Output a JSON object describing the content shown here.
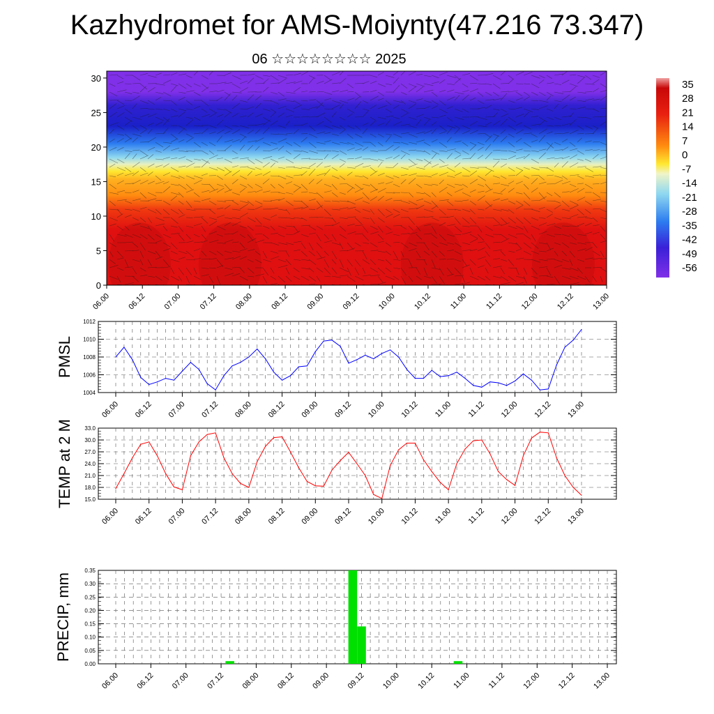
{
  "header": {
    "title": "Kazhydromet for AMS-Moiynty(47.216 73.347)",
    "subtitle": "06 ☆☆☆☆☆☆☆☆ 2025"
  },
  "chart_data": [
    {
      "type": "heatmap",
      "title": "",
      "xlabel": "",
      "ylabel": "",
      "x_ticks": [
        "06.00",
        "06.12",
        "07.00",
        "07.12",
        "08.00",
        "08.12",
        "09.00",
        "09.12",
        "10.00",
        "10.12",
        "11.00",
        "11.12",
        "12.00",
        "12.12",
        "13.00"
      ],
      "y_ticks": [
        0,
        5,
        10,
        15,
        20,
        25,
        30
      ],
      "ylim": [
        0,
        31
      ],
      "colorbar_labels": [
        "35",
        "28",
        "21",
        "14",
        "7",
        "0",
        "-7",
        "-14",
        "-21",
        "-28",
        "-35",
        "-42",
        "-49",
        "-56"
      ],
      "colors": {
        "hot": "#e01010",
        "warm": "#ff8c10",
        "yellow": "#ffe830",
        "cool": "#8fd8f0",
        "cold": "#2c7cf0",
        "deep": "#1a20c8",
        "violet": "#8030e8"
      },
      "legend": "right",
      "overlay": "wind-barbs"
    },
    {
      "type": "line",
      "ylabel": "PMSL",
      "x_ticks": [
        "06.00",
        "06.12",
        "07.00",
        "07.12",
        "08.00",
        "08.12",
        "09.00",
        "09.12",
        "10.00",
        "10.12",
        "11.00",
        "11.12",
        "12.00",
        "12.12",
        "13.00"
      ],
      "y_ticks": [
        "1004",
        "1006",
        "1008",
        "1010",
        "1012"
      ],
      "ylim": [
        1004,
        1012
      ],
      "line_color": "#0000ff",
      "values": [
        1008,
        1009.1,
        1007.7,
        1005.7,
        1004.9,
        1005.2,
        1005.6,
        1005.4,
        1006.4,
        1007.4,
        1006.6,
        1005,
        1004.3,
        1005.9,
        1007,
        1007.4,
        1008,
        1008.9,
        1007.8,
        1006.3,
        1005.4,
        1005.9,
        1006.9,
        1007,
        1008.6,
        1009.8,
        1009.9,
        1009.2,
        1007.3,
        1007.7,
        1008.2,
        1007.8,
        1008.4,
        1008.8,
        1008,
        1006.6,
        1005.6,
        1005.6,
        1006.5,
        1005.8,
        1005.9,
        1006.3,
        1005.6,
        1004.8,
        1004.6,
        1005.2,
        1005.1,
        1004.8,
        1005.3,
        1006.1,
        1005.4,
        1004.3,
        1004.4,
        1007.1,
        1009.1,
        1009.9,
        1011.1
      ]
    },
    {
      "type": "line",
      "ylabel": "TEMP at 2 M",
      "x_ticks": [
        "06.00",
        "06.12",
        "07.00",
        "07.12",
        "08.00",
        "08.12",
        "09.00",
        "09.12",
        "10.00",
        "10.12",
        "11.00",
        "11.12",
        "12.00",
        "12.12",
        "13.00"
      ],
      "y_ticks": [
        "15.0",
        "18.0",
        "21.0",
        "24.0",
        "27.0",
        "30.0",
        "33.0"
      ],
      "ylim": [
        15,
        33
      ],
      "line_color": "#ff0000",
      "values": [
        17.7,
        21.5,
        25.5,
        28.9,
        29.5,
        26,
        21.5,
        18.1,
        17.4,
        26,
        29.5,
        31.4,
        31.8,
        25.5,
        21.5,
        19,
        18,
        24.5,
        28.4,
        30.6,
        30.8,
        27,
        23,
        19.5,
        18.4,
        18.3,
        22.4,
        24.8,
        26.9,
        24,
        21,
        16.2,
        15.2,
        23.5,
        27.5,
        29.2,
        29.2,
        25,
        22,
        19.3,
        17.4,
        24,
        27.7,
        29.8,
        30,
        26.5,
        22,
        20,
        18.5,
        26,
        30.5,
        32,
        31.8,
        25.5,
        21,
        18,
        16
      ]
    },
    {
      "type": "bar",
      "ylabel": "PRECIP, mm",
      "x_ticks": [
        "06.00",
        "06.12",
        "07.00",
        "07.12",
        "08.00",
        "08.12",
        "09.00",
        "09.12",
        "10.00",
        "10.12",
        "11.00",
        "11.12",
        "12.00",
        "12.12",
        "13.00"
      ],
      "y_ticks": [
        "0.00",
        "0.05",
        "0.10",
        "0.15",
        "0.20",
        "0.25",
        "0.30",
        "0.35"
      ],
      "ylim": [
        0,
        0.35
      ],
      "bar_color": "#00e000",
      "bars": [
        {
          "step": 13,
          "value": 0.01
        },
        {
          "step": 27,
          "value": 0.35
        },
        {
          "step": 28,
          "value": 0.14
        },
        {
          "step": 39,
          "value": 0.01
        }
      ]
    }
  ]
}
